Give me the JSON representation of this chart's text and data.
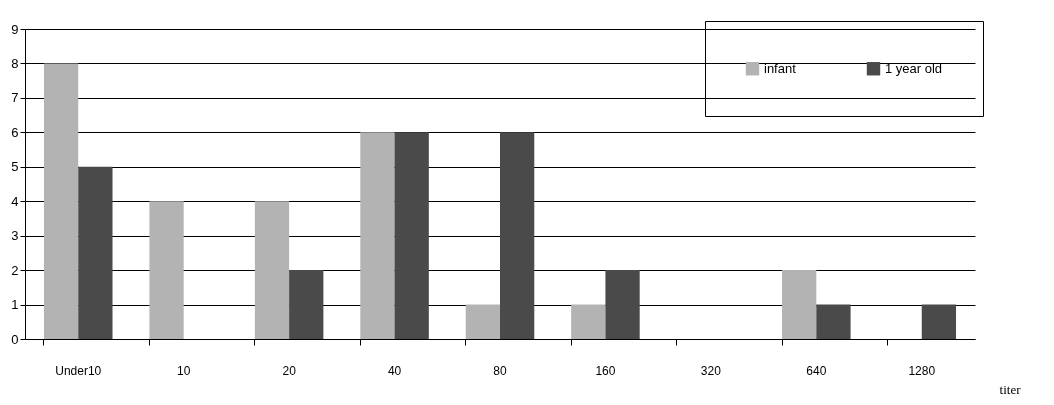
{
  "chart_data": {
    "type": "bar",
    "xlabel": "titer",
    "categories": [
      "Under10",
      "10",
      "20",
      "40",
      "80",
      "160",
      "320",
      "640",
      "1280"
    ],
    "series": [
      {
        "name": "infant",
        "color": "#b3b3b3",
        "values": [
          8,
          4,
          4,
          6,
          1,
          1,
          0,
          2,
          0
        ]
      },
      {
        "name": "1 year old",
        "color": "#4a4a4a",
        "values": [
          5,
          0,
          2,
          6,
          6,
          2,
          0,
          1,
          1
        ]
      }
    ],
    "ylim": [
      0,
      9
    ],
    "yticks": [
      0,
      1,
      2,
      3,
      4,
      5,
      6,
      7,
      8,
      9
    ],
    "grid": "y",
    "legend": "top right"
  }
}
